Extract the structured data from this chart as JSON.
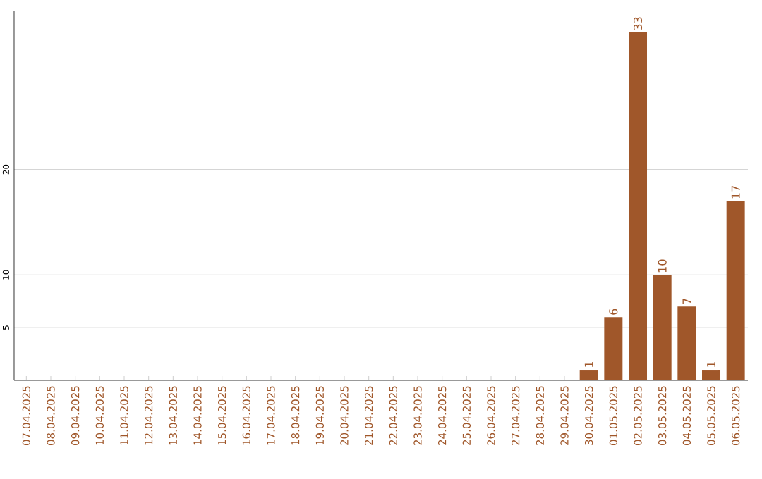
{
  "chart_data": {
    "type": "bar",
    "categories": [
      "07.04.2025",
      "08.04.2025",
      "09.04.2025",
      "10.04.2025",
      "11.04.2025",
      "12.04.2025",
      "13.04.2025",
      "14.04.2025",
      "15.04.2025",
      "16.04.2025",
      "17.04.2025",
      "18.04.2025",
      "19.04.2025",
      "20.04.2025",
      "21.04.2025",
      "22.04.2025",
      "23.04.2025",
      "24.04.2025",
      "25.04.2025",
      "26.04.2025",
      "27.04.2025",
      "28.04.2025",
      "29.04.2025",
      "30.04.2025",
      "01.05.2025",
      "02.05.2025",
      "03.05.2025",
      "04.05.2025",
      "05.05.2025",
      "06.05.2025"
    ],
    "values": [
      0,
      0,
      0,
      0,
      0,
      0,
      0,
      0,
      0,
      0,
      0,
      0,
      0,
      0,
      0,
      0,
      0,
      0,
      0,
      0,
      0,
      0,
      0,
      1,
      6,
      33,
      10,
      7,
      1,
      17
    ],
    "value_labels": [
      null,
      null,
      null,
      null,
      null,
      null,
      null,
      null,
      null,
      null,
      null,
      null,
      null,
      null,
      null,
      null,
      null,
      null,
      null,
      null,
      null,
      null,
      null,
      "1",
      "6",
      "33",
      "10",
      "7",
      "1",
      "17"
    ],
    "color": "#a0572a",
    "ylim": [
      0,
      35
    ],
    "yticks": [
      5,
      10,
      20
    ],
    "grid": "y"
  }
}
